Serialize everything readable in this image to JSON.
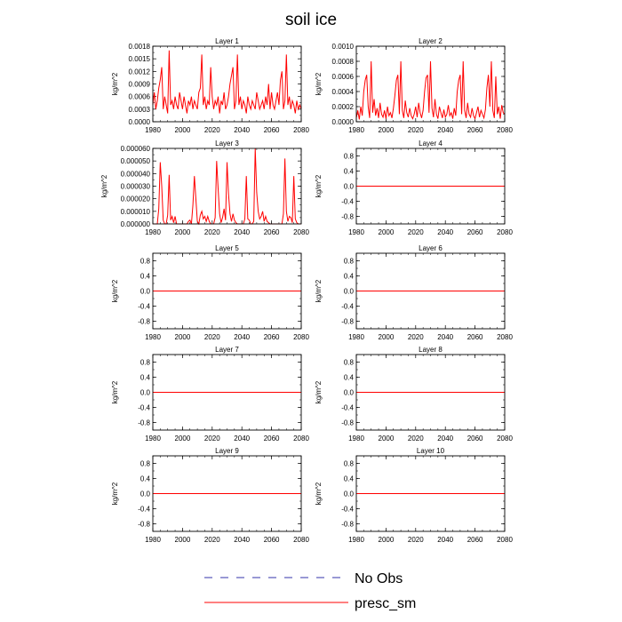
{
  "title": "soil ice",
  "colors": {
    "presc_sm": "#ff0000",
    "no_obs": "#3333aa",
    "frame": "#000000"
  },
  "legend": [
    {
      "name": "No Obs",
      "style": "dashed",
      "color": "#3333aa"
    },
    {
      "name": "presc_sm",
      "style": "solid",
      "color": "#ff0000"
    }
  ],
  "chart_data": [
    {
      "type": "line",
      "title": "Layer 1",
      "ylabel": "kg/m^2",
      "xlim": [
        1980,
        2080
      ],
      "xticks": [
        1980,
        2000,
        2020,
        2040,
        2060,
        2080
      ],
      "ylim": [
        0,
        0.0018
      ],
      "yticks": [
        "0.0000",
        "0.0003",
        "0.0006",
        "0.0009",
        "0.0012",
        "0.0015",
        "0.0018"
      ],
      "series": [
        {
          "name": "presc_sm",
          "color": "#ff0000",
          "x": [
            1980,
            1981,
            1982,
            1983,
            1984,
            1985,
            1986,
            1987,
            1988,
            1989,
            1990,
            1991,
            1992,
            1993,
            1994,
            1995,
            1996,
            1997,
            1998,
            1999,
            2000,
            2001,
            2002,
            2003,
            2004,
            2005,
            2006,
            2007,
            2008,
            2009,
            2010,
            2011,
            2012,
            2013,
            2014,
            2015,
            2016,
            2017,
            2018,
            2019,
            2020,
            2021,
            2022,
            2023,
            2024,
            2025,
            2026,
            2027,
            2028,
            2029,
            2030,
            2031,
            2032,
            2033,
            2034,
            2035,
            2036,
            2037,
            2038,
            2039,
            2040,
            2041,
            2042,
            2043,
            2044,
            2045,
            2046,
            2047,
            2048,
            2049,
            2050,
            2051,
            2052,
            2053,
            2054,
            2055,
            2056,
            2057,
            2058,
            2059,
            2060,
            2061,
            2062,
            2063,
            2064,
            2065,
            2066,
            2067,
            2068,
            2069,
            2070,
            2071,
            2072,
            2073,
            2074,
            2075,
            2076,
            2077,
            2078,
            2079,
            2080
          ],
          "y": [
            0.0004,
            0.0007,
            0.0003,
            0.0005,
            0.0008,
            0.001,
            0.0013,
            0.0003,
            0.0006,
            0.0004,
            0.0002,
            0.0017,
            0.0004,
            0.0005,
            0.0003,
            0.0006,
            0.0004,
            0.0003,
            0.0007,
            0.0005,
            0.0003,
            0.0006,
            0.0004,
            0.0002,
            0.0005,
            0.0004,
            0.0006,
            0.0003,
            0.0005,
            0.0004,
            0.0003,
            0.0007,
            0.0008,
            0.0016,
            0.0004,
            0.0006,
            0.0003,
            0.0005,
            0.0004,
            0.0013,
            0.0006,
            0.0003,
            0.0005,
            0.0004,
            0.0006,
            0.0002,
            0.0005,
            0.0004,
            0.0007,
            0.0003,
            0.0004,
            0.0006,
            0.0009,
            0.0011,
            0.0013,
            0.0003,
            0.0005,
            0.0016,
            0.0004,
            0.0006,
            0.0003,
            0.0005,
            0.0004,
            0.0002,
            0.0006,
            0.0004,
            0.0003,
            0.0005,
            0.0004,
            0.0003,
            0.0007,
            0.0005,
            0.0003,
            0.0004,
            0.0005,
            0.0003,
            0.0006,
            0.0004,
            0.0009,
            0.0003,
            0.0007,
            0.0004,
            0.0003,
            0.0005,
            0.0007,
            0.0004,
            0.001,
            0.0012,
            0.0003,
            0.0005,
            0.0016,
            0.0004,
            0.0006,
            0.0003,
            0.0005,
            0.0004,
            0.0002,
            0.0005,
            0.0003,
            0.0004,
            0.0003
          ]
        }
      ]
    },
    {
      "type": "line",
      "title": "Layer 2",
      "ylabel": "kg/m^2",
      "xlim": [
        1980,
        2080
      ],
      "xticks": [
        1980,
        2000,
        2020,
        2040,
        2060,
        2080
      ],
      "ylim": [
        0,
        0.001
      ],
      "yticks": [
        "0.0000",
        "0.0002",
        "0.0004",
        "0.0006",
        "0.0008",
        "0.0010"
      ],
      "series": [
        {
          "name": "presc_sm",
          "color": "#ff0000",
          "x": [
            1980,
            1981,
            1982,
            1983,
            1984,
            1985,
            1986,
            1987,
            1988,
            1989,
            1990,
            1991,
            1992,
            1993,
            1994,
            1995,
            1996,
            1997,
            1998,
            1999,
            2000,
            2001,
            2002,
            2003,
            2004,
            2005,
            2006,
            2007,
            2008,
            2009,
            2010,
            2011,
            2012,
            2013,
            2014,
            2015,
            2016,
            2017,
            2018,
            2019,
            2020,
            2021,
            2022,
            2023,
            2024,
            2025,
            2026,
            2027,
            2028,
            2029,
            2030,
            2031,
            2032,
            2033,
            2034,
            2035,
            2036,
            2037,
            2038,
            2039,
            2040,
            2041,
            2042,
            2043,
            2044,
            2045,
            2046,
            2047,
            2048,
            2049,
            2050,
            2051,
            2052,
            2053,
            2054,
            2055,
            2056,
            2057,
            2058,
            2059,
            2060,
            2061,
            2062,
            2063,
            2064,
            2065,
            2066,
            2067,
            2068,
            2069,
            2070,
            2071,
            2072,
            2073,
            2074,
            2075,
            2076,
            2077,
            2078,
            2079,
            2080
          ],
          "y": [
            5e-05,
            0.00015,
            3e-05,
            0.0002,
            8e-05,
            0.0004,
            0.00055,
            0.00062,
            0.0002,
            5e-05,
            0.0008,
            0.00012,
            0.0003,
            8e-05,
            0.00018,
            5e-05,
            0.00025,
            0.0001,
            6e-05,
            0.00015,
            4e-05,
            0.0002,
            8e-05,
            0.00012,
            5e-05,
            0.00018,
            0.00035,
            0.00055,
            0.00062,
            0.0001,
            0.0008,
            0.00015,
            5e-05,
            0.00028,
            0.00012,
            6e-05,
            0.00018,
            8e-05,
            4e-05,
            0.0001,
            0.0002,
            6e-05,
            0.00025,
            0.00012,
            5e-05,
            0.00015,
            0.0004,
            0.00058,
            0.00062,
            0.00012,
            0.0008,
            0.00018,
            6e-05,
            0.0003,
            0.0001,
            4e-05,
            0.0002,
            0.00012,
            5e-05,
            0.00016,
            6e-05,
            0.0001,
            0.00022,
            8e-05,
            0.00012,
            4e-05,
            0.00018,
            8e-05,
            0.0004,
            0.00055,
            0.00062,
            0.0001,
            0.0008,
            0.00015,
            5e-05,
            0.00025,
            0.0001,
            6e-05,
            0.00018,
            8e-05,
            4e-05,
            0.00012,
            0.0002,
            6e-05,
            0.00015,
            0.0001,
            5e-05,
            0.00016,
            0.00045,
            0.00062,
            0.0002,
            0.0008,
            0.00015,
            5e-05,
            0.0006,
            0.0001,
            0.0002,
            4e-05,
            0.00022,
            0.00012,
            0.0001
          ]
        }
      ]
    },
    {
      "type": "line",
      "title": "Layer 3",
      "ylabel": "kg/m^2",
      "xlim": [
        1980,
        2080
      ],
      "xticks": [
        1980,
        2000,
        2020,
        2040,
        2060,
        2080
      ],
      "ylim": [
        0,
        6e-05
      ],
      "yticks": [
        "0.000000",
        "0.000010",
        "0.000020",
        "0.000030",
        "0.000040",
        "0.000050",
        "0.000060"
      ],
      "series": [
        {
          "name": "presc_sm",
          "color": "#ff0000",
          "x": [
            1980,
            1981,
            1982,
            1983,
            1984,
            1985,
            1986,
            1987,
            1988,
            1989,
            1990,
            1991,
            1992,
            1993,
            1994,
            1995,
            1996,
            1997,
            1998,
            1999,
            2000,
            2001,
            2002,
            2003,
            2004,
            2005,
            2006,
            2007,
            2008,
            2009,
            2010,
            2011,
            2012,
            2013,
            2014,
            2015,
            2016,
            2017,
            2018,
            2019,
            2020,
            2021,
            2022,
            2023,
            2024,
            2025,
            2026,
            2027,
            2028,
            2029,
            2030,
            2031,
            2032,
            2033,
            2034,
            2035,
            2036,
            2037,
            2038,
            2039,
            2040,
            2041,
            2042,
            2043,
            2044,
            2045,
            2046,
            2047,
            2048,
            2049,
            2050,
            2051,
            2052,
            2053,
            2054,
            2055,
            2056,
            2057,
            2058,
            2059,
            2060,
            2061,
            2062,
            2063,
            2064,
            2065,
            2066,
            2067,
            2068,
            2069,
            2070,
            2071,
            2072,
            2073,
            2074,
            2075,
            2076,
            2077,
            2078,
            2079,
            2080
          ],
          "y": [
            0,
            0,
            0,
            0,
            1.2e-05,
            4.9e-05,
            3e-05,
            3e-06,
            0,
            0,
            7e-06,
            3.9e-05,
            3e-06,
            6e-06,
            1e-06,
            6e-06,
            0,
            0,
            0,
            0,
            0,
            0,
            0,
            0,
            2e-06,
            3e-06,
            0,
            1.5e-05,
            3.8e-05,
            2e-05,
            2e-06,
            0,
            7e-06,
            1e-05,
            4e-06,
            6e-06,
            2e-06,
            6e-06,
            2e-06,
            0,
            0,
            0,
            5e-06,
            5e-05,
            2.8e-05,
            8e-06,
            1e-06,
            5e-06,
            1.2e-05,
            3e-06,
            4.9e-05,
            2.4e-05,
            8e-06,
            2e-06,
            8e-06,
            3e-06,
            1e-06,
            0,
            0,
            0,
            0,
            0,
            4e-06,
            3.8e-05,
            4e-06,
            3e-06,
            0,
            0,
            2e-06,
            6e-05,
            2.5e-05,
            1e-05,
            4e-06,
            6e-06,
            1e-05,
            2e-06,
            6e-06,
            2e-06,
            1e-06,
            0,
            0,
            0,
            0,
            0,
            0,
            0,
            0,
            0,
            8e-06,
            5.2e-05,
            1e-05,
            2e-06,
            6e-06,
            5e-06,
            1e-06,
            3.8e-05,
            4e-06,
            1e-06,
            0,
            0,
            0
          ]
        }
      ]
    },
    {
      "type": "line",
      "title": "Layer 4",
      "ylabel": "kg/m^2",
      "xlim": [
        1980,
        2080
      ],
      "xticks": [
        1980,
        2000,
        2020,
        2040,
        2060,
        2080
      ],
      "ylim": [
        -1,
        1
      ],
      "yticks": [
        "-0.8",
        "-0.4",
        "0.0",
        "0.4",
        "0.8"
      ],
      "series": [
        {
          "name": "presc_sm",
          "color": "#ff0000",
          "x": [
            1980,
            2080
          ],
          "y": [
            0,
            0
          ]
        }
      ]
    },
    {
      "type": "line",
      "title": "Layer 5",
      "ylabel": "kg/m^2",
      "xlim": [
        1980,
        2080
      ],
      "xticks": [
        1980,
        2000,
        2020,
        2040,
        2060,
        2080
      ],
      "ylim": [
        -1,
        1
      ],
      "yticks": [
        "-0.8",
        "-0.4",
        "0.0",
        "0.4",
        "0.8"
      ],
      "series": [
        {
          "name": "presc_sm",
          "color": "#ff0000",
          "x": [
            1980,
            2080
          ],
          "y": [
            0,
            0
          ]
        }
      ]
    },
    {
      "type": "line",
      "title": "Layer 6",
      "ylabel": "kg/m^2",
      "xlim": [
        1980,
        2080
      ],
      "xticks": [
        1980,
        2000,
        2020,
        2040,
        2060,
        2080
      ],
      "ylim": [
        -1,
        1
      ],
      "yticks": [
        "-0.8",
        "-0.4",
        "0.0",
        "0.4",
        "0.8"
      ],
      "series": [
        {
          "name": "presc_sm",
          "color": "#ff0000",
          "x": [
            1980,
            2080
          ],
          "y": [
            0,
            0
          ]
        }
      ]
    },
    {
      "type": "line",
      "title": "Layer 7",
      "ylabel": "kg/m^2",
      "xlim": [
        1980,
        2080
      ],
      "xticks": [
        1980,
        2000,
        2020,
        2040,
        2060,
        2080
      ],
      "ylim": [
        -1,
        1
      ],
      "yticks": [
        "-0.8",
        "-0.4",
        "0.0",
        "0.4",
        "0.8"
      ],
      "series": [
        {
          "name": "presc_sm",
          "color": "#ff0000",
          "x": [
            1980,
            2080
          ],
          "y": [
            0,
            0
          ]
        }
      ]
    },
    {
      "type": "line",
      "title": "Layer 8",
      "ylabel": "kg/m^2",
      "xlim": [
        1980,
        2080
      ],
      "xticks": [
        1980,
        2000,
        2020,
        2040,
        2060,
        2080
      ],
      "ylim": [
        -1,
        1
      ],
      "yticks": [
        "-0.8",
        "-0.4",
        "0.0",
        "0.4",
        "0.8"
      ],
      "series": [
        {
          "name": "presc_sm",
          "color": "#ff0000",
          "x": [
            1980,
            2080
          ],
          "y": [
            0,
            0
          ]
        }
      ]
    },
    {
      "type": "line",
      "title": "Layer 9",
      "ylabel": "kg/m^2",
      "xlim": [
        1980,
        2080
      ],
      "xticks": [
        1980,
        2000,
        2020,
        2040,
        2060,
        2080
      ],
      "ylim": [
        -1,
        1
      ],
      "yticks": [
        "-0.8",
        "-0.4",
        "0.0",
        "0.4",
        "0.8"
      ],
      "series": [
        {
          "name": "presc_sm",
          "color": "#ff0000",
          "x": [
            1980,
            2080
          ],
          "y": [
            0,
            0
          ]
        }
      ]
    },
    {
      "type": "line",
      "title": "Layer 10",
      "ylabel": "kg/m^2",
      "xlim": [
        1980,
        2080
      ],
      "xticks": [
        1980,
        2000,
        2020,
        2040,
        2060,
        2080
      ],
      "ylim": [
        -1,
        1
      ],
      "yticks": [
        "-0.8",
        "-0.4",
        "0.0",
        "0.4",
        "0.8"
      ],
      "series": [
        {
          "name": "presc_sm",
          "color": "#ff0000",
          "x": [
            1980,
            2080
          ],
          "y": [
            0,
            0
          ]
        }
      ]
    }
  ]
}
